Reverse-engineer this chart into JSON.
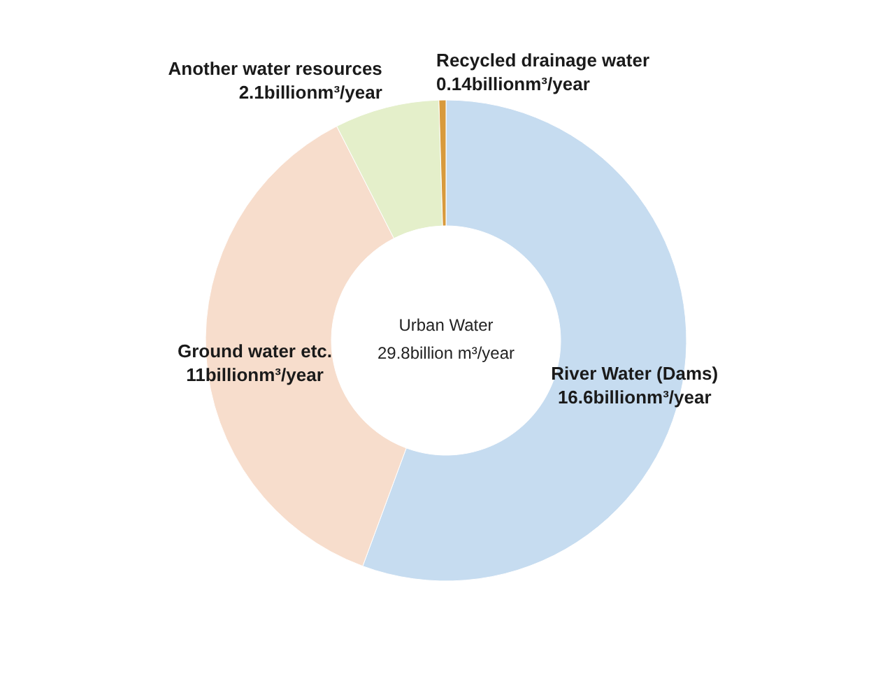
{
  "chart_data": {
    "type": "donut",
    "title": "Urban Water",
    "subtitle": "29.8billion m³/year",
    "categories": [
      "River Water (Dams)",
      "Ground water etc.",
      "Another water resources",
      "Recycled drainage water"
    ],
    "values": [
      16.6,
      11,
      2.1,
      0.14
    ],
    "colors": [
      "#c6dcf0",
      "#f7ddcc",
      "#e4efca",
      "#d89a3c"
    ],
    "value_labels": [
      "16.6billionm³/year",
      "11billionm³/year",
      "2.1billionm³/year",
      "0.14billionm³/year"
    ]
  }
}
